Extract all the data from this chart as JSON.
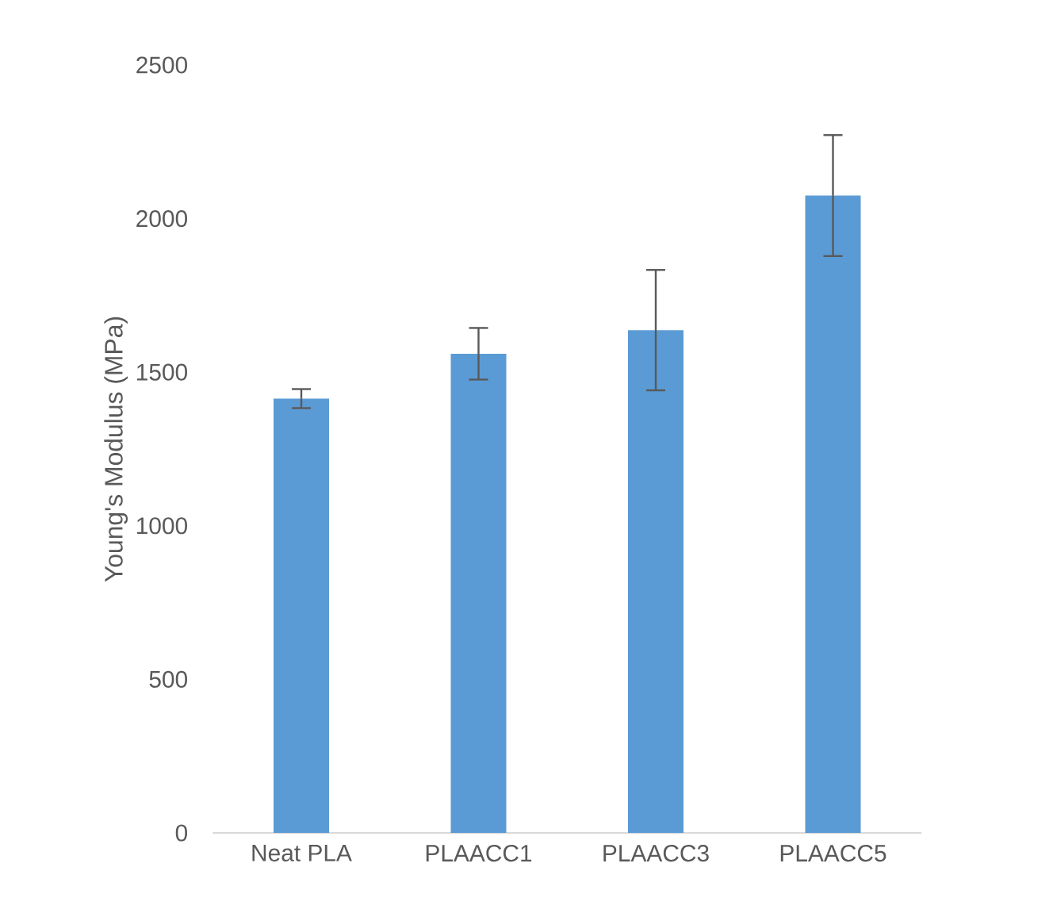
{
  "chart_data": {
    "type": "bar",
    "ylabel": "Young's Modulus (MPa)",
    "categories": [
      "Neat PLA",
      "PLAACC1",
      "PLAACC3",
      "PLAACC5"
    ],
    "values": [
      1414,
      1560,
      1637,
      2075
    ],
    "errors": [
      31,
      84,
      196,
      197
    ],
    "color": "#5b9bd5",
    "ylim": [
      0,
      2500
    ],
    "yticks": [
      0,
      500,
      1000,
      1500,
      2000,
      2500
    ]
  }
}
